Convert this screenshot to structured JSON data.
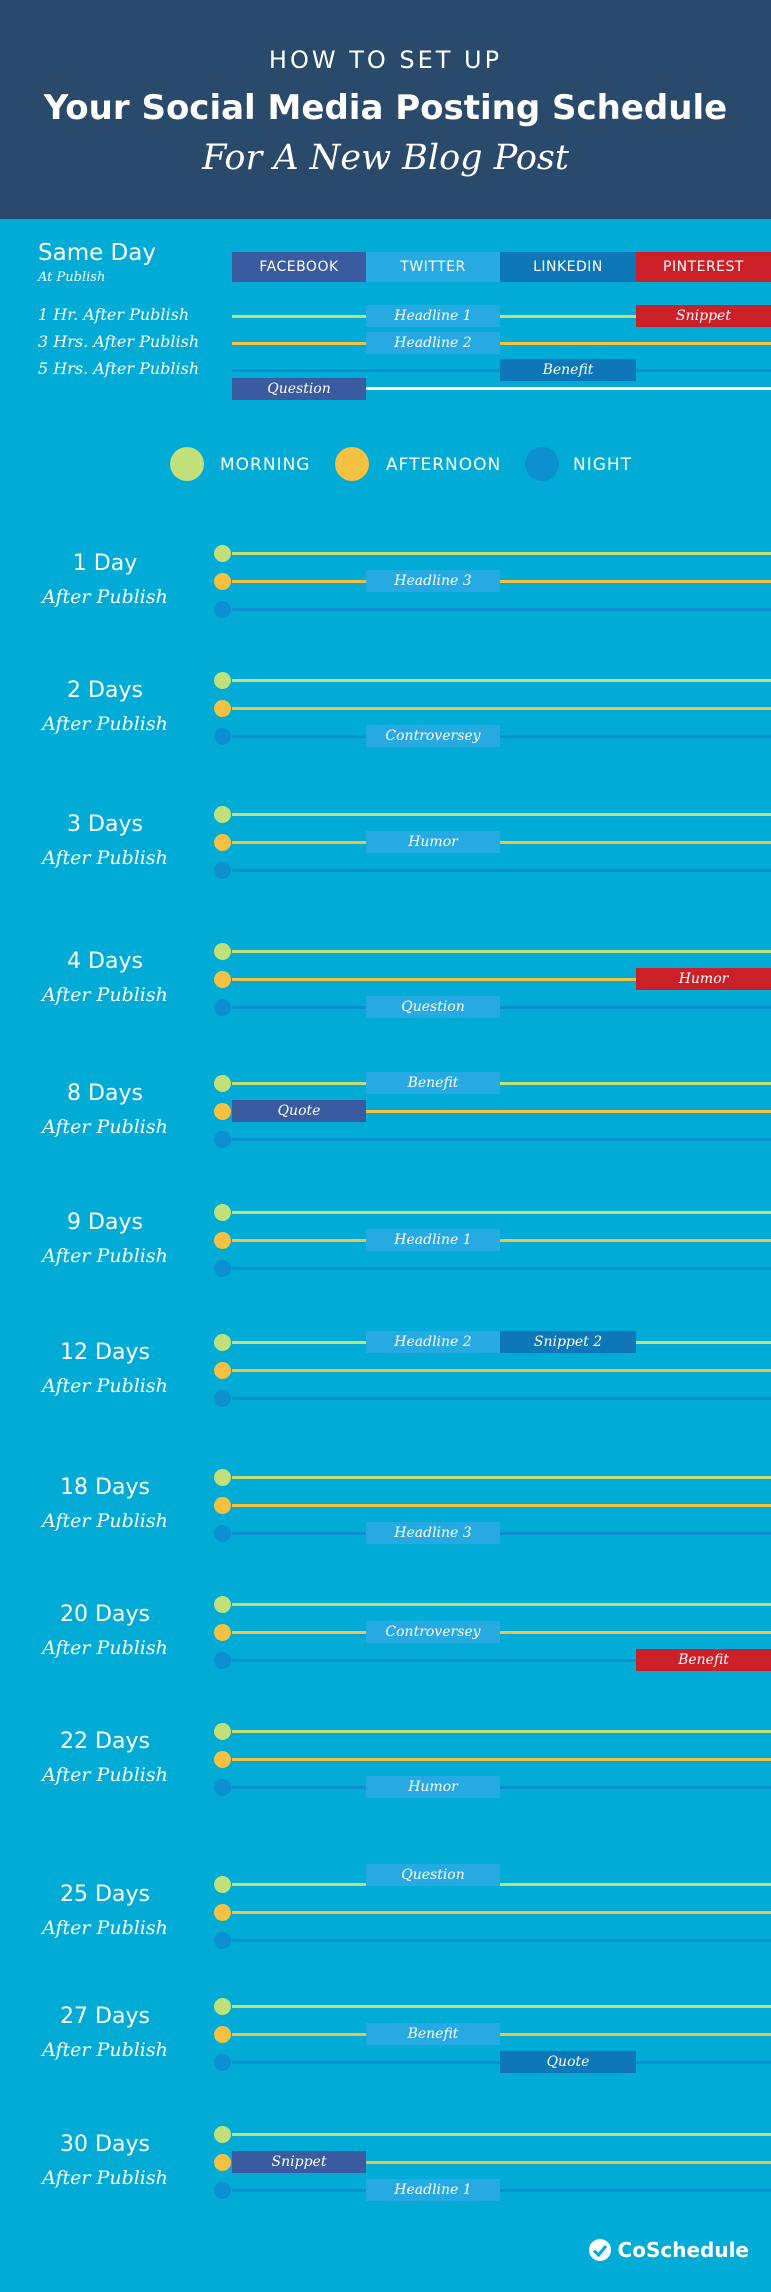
{
  "header": {
    "line1": "HOW TO SET UP",
    "line2": "Your Social Media Posting Schedule",
    "line3": "For A New Blog Post"
  },
  "colors": {
    "facebook": "#3a5ba0",
    "twitter": "#27a9e1",
    "linkedin": "#0d77b7",
    "pinterest": "#cb2027",
    "morning": "#c1e07a",
    "afternoon": "#f5c142",
    "night": "#0d8fcf"
  },
  "same_day": {
    "title": "Same Day",
    "subtitle": "At Publish",
    "networks": [
      "FACEBOOK",
      "TWITTER",
      "LINKEDIN",
      "PINTEREST"
    ],
    "rows": [
      {
        "label": "1 Hr. After Publish",
        "posts": [
          {
            "network": 1,
            "text": "Headline 1"
          },
          {
            "network": 3,
            "text": "Snippet"
          }
        ]
      },
      {
        "label": "3 Hrs. After Publish",
        "posts": [
          {
            "network": 1,
            "text": "Headline 2"
          }
        ]
      },
      {
        "label": "5 Hrs. After Publish",
        "posts": [
          {
            "network": 2,
            "text": "Benefit"
          },
          {
            "network": 0,
            "text": "Question"
          }
        ]
      }
    ]
  },
  "legend": {
    "morning": "MORNING",
    "afternoon": "AFTERNOON",
    "night": "NIGHT"
  },
  "after_label": "After Publish",
  "days": [
    {
      "label": "1 Day",
      "posts": [
        {
          "slot": "afternoon",
          "network": 1,
          "text": "Headline 3"
        }
      ]
    },
    {
      "label": "2 Days",
      "posts": [
        {
          "slot": "night",
          "network": 1,
          "text": "Controversey"
        }
      ]
    },
    {
      "label": "3 Days",
      "posts": [
        {
          "slot": "afternoon",
          "network": 1,
          "text": "Humor"
        }
      ]
    },
    {
      "label": "4 Days",
      "posts": [
        {
          "slot": "afternoon",
          "network": 3,
          "text": "Humor"
        },
        {
          "slot": "night",
          "network": 1,
          "text": "Question"
        }
      ]
    },
    {
      "label": "8 Days",
      "posts": [
        {
          "slot": "morning",
          "network": 1,
          "text": "Benefit"
        },
        {
          "slot": "afternoon",
          "network": 0,
          "text": "Quote"
        }
      ]
    },
    {
      "label": "9 Days",
      "posts": [
        {
          "slot": "afternoon",
          "network": 1,
          "text": "Headline 1"
        }
      ]
    },
    {
      "label": "12 Days",
      "posts": [
        {
          "slot": "morning",
          "network": 1,
          "text": "Headline 2"
        },
        {
          "slot": "morning",
          "network": 2,
          "text": "Snippet 2"
        }
      ]
    },
    {
      "label": "18 Days",
      "posts": [
        {
          "slot": "night",
          "network": 1,
          "text": "Headline 3"
        }
      ]
    },
    {
      "label": "20 Days",
      "posts": [
        {
          "slot": "afternoon",
          "network": 1,
          "text": "Controversey"
        },
        {
          "slot": "night",
          "network": 3,
          "text": "Benefit"
        }
      ]
    },
    {
      "label": "22 Days",
      "posts": [
        {
          "slot": "night",
          "network": 1,
          "text": "Humor"
        }
      ]
    },
    {
      "label": "25 Days",
      "posts": [
        {
          "slot": "above",
          "network": 1,
          "text": "Question"
        }
      ]
    },
    {
      "label": "27 Days",
      "posts": [
        {
          "slot": "afternoon",
          "network": 1,
          "text": "Benefit"
        },
        {
          "slot": "night",
          "network": 2,
          "text": "Quote"
        }
      ]
    },
    {
      "label": "30 Days",
      "posts": [
        {
          "slot": "afternoon",
          "network": 0,
          "text": "Snippet"
        },
        {
          "slot": "night",
          "network": 1,
          "text": "Headline 1"
        }
      ]
    }
  ],
  "brand": "CoSchedule"
}
